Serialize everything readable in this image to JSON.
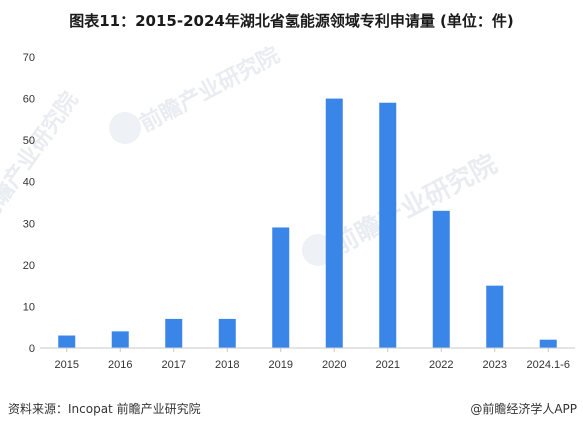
{
  "chart_data": {
    "type": "bar",
    "title": "图表11：2015-2024年湖北省氢能源领域专利申请量 (单位：件)",
    "categories": [
      "2015",
      "2016",
      "2017",
      "2018",
      "2019",
      "2020",
      "2021",
      "2022",
      "2023",
      "2024.1-6"
    ],
    "values": [
      3,
      4,
      7,
      7,
      29,
      60,
      59,
      33,
      15,
      2
    ],
    "ylim": [
      0,
      70
    ],
    "yticks": [
      0,
      10,
      20,
      30,
      40,
      50,
      60,
      70
    ],
    "grid": false,
    "legend": "none",
    "bar_color": "#3a86e8",
    "axis_color": "#c8c8c8"
  },
  "watermark": {
    "text": "前瞻产业研究院"
  },
  "footer": {
    "source": "资料来源：Incopat 前瞻产业研究院",
    "credit": "@前瞻经济学人APP"
  }
}
